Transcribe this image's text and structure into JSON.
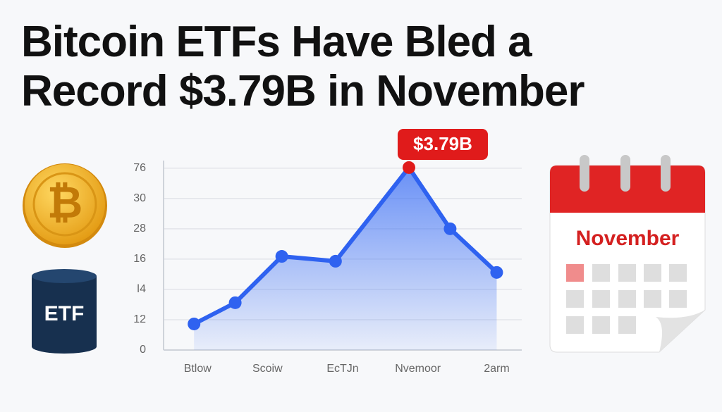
{
  "chart_data": {
    "type": "line",
    "title_lines": [
      "Bitcoin ETFs Have Bled a",
      "Record $3.79B in November"
    ],
    "annotation": "$3.79B",
    "x": [
      0.85,
      2.0,
      3.3,
      4.8,
      6.85,
      8.0,
      9.3
    ],
    "series": [
      {
        "color": "#2f62f0",
        "values": [
          0.86,
          1.56,
          3.09,
          2.93,
          6.02,
          4.0,
          2.56
        ]
      }
    ],
    "highlight_color": "#e01b1b",
    "xlim": [
      0,
      10
    ],
    "xticks": [
      {
        "value": 0.95,
        "label": "Btlow"
      },
      {
        "value": 2.9,
        "label": "Scoiw"
      },
      {
        "value": 5.0,
        "label": "EcTJn"
      },
      {
        "value": 7.1,
        "label": "Nvemoor"
      },
      {
        "value": 9.3,
        "label": "2arm"
      }
    ],
    "ylim": [
      0,
      6.25
    ],
    "yticks": [
      0,
      {
        "value": 1,
        "label": "12"
      },
      {
        "value": 2,
        "label": "ǀ4"
      },
      {
        "value": 3,
        "label": "16"
      },
      {
        "value": 4,
        "label": "28"
      },
      {
        "value": 5,
        "label": "30"
      },
      {
        "value": 6,
        "label": "76"
      }
    ],
    "grid": true
  },
  "icons": {
    "coin": "₿",
    "etf": "ETF",
    "calendar": "November"
  }
}
